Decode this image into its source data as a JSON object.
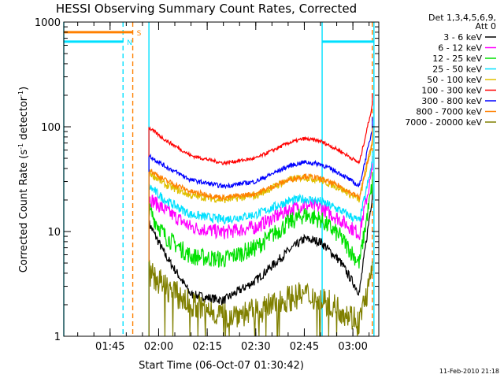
{
  "chart_data": {
    "type": "line",
    "title": "HESSI Observing Summary Count Rates, Corrected",
    "xlabel": "Start Time (06-Oct-07 01:30:42)",
    "ylabel_main": "Corrected Count Rate (s",
    "ylabel_sup1": "-1",
    "ylabel_mid": " detector",
    "ylabel_sup2": "-1",
    "ylabel_end": ")",
    "y_scale": "log",
    "ylim": [
      1,
      1000
    ],
    "xlim": [
      "01:30:42",
      "03:08:00"
    ],
    "x_ticks": [
      "01:45",
      "02:00",
      "02:15",
      "02:30",
      "02:45",
      "03:00"
    ],
    "y_ticks": [
      "1",
      "10",
      "100",
      "1000"
    ],
    "grid": false,
    "legend": {
      "position": "right",
      "header_1": "Det 1,3,4,5,6,9,",
      "header_2": "Att 0"
    },
    "timestamp": "11-Feb-2010 21:18",
    "flags": [
      {
        "label": "S",
        "color": "#ff8000",
        "x_start": "01:30:42",
        "x_end": "01:52:00",
        "y": 800
      },
      {
        "label": "N",
        "color": "#00e0ff",
        "x_start": "01:30:42",
        "x_end": "01:49:00",
        "y": 650
      },
      {
        "label": "",
        "color": "#00e0ff",
        "x_start": "02:50:30",
        "x_end": "03:06:30",
        "y": 650
      }
    ],
    "vlines": [
      {
        "x": "01:30:42",
        "color": "#00e0ff",
        "style": "solid"
      },
      {
        "x": "01:49:00",
        "color": "#00e0ff",
        "style": "dashed"
      },
      {
        "x": "01:52:00",
        "color": "#ff8000",
        "style": "dashed"
      },
      {
        "x": "01:57:00",
        "color": "#00e0ff",
        "style": "solid"
      },
      {
        "x": "02:50:30",
        "color": "#00e0ff",
        "style": "solid"
      },
      {
        "x": "03:06:00",
        "color": "#ff8000",
        "style": "dashed"
      },
      {
        "x": "03:06:30",
        "color": "#00e0ff",
        "style": "solid"
      }
    ],
    "data_start": "01:57:00",
    "data_end": "03:06:00",
    "series": [
      {
        "name": "3 - 6 keV",
        "color": "#000000",
        "x": [
          "01:57",
          "02:02",
          "02:10",
          "02:20",
          "02:30",
          "02:40",
          "02:45",
          "02:50",
          "02:56",
          "03:02",
          "03:06"
        ],
        "values": [
          12,
          6,
          2.5,
          2.2,
          3.4,
          6.5,
          8.5,
          8,
          5.2,
          2.6,
          22
        ]
      },
      {
        "name": "6 - 12 keV",
        "color": "#ff00ff",
        "x": [
          "01:57",
          "02:02",
          "02:10",
          "02:20",
          "02:30",
          "02:40",
          "02:45",
          "02:50",
          "02:56",
          "03:02",
          "03:06"
        ],
        "values": [
          21,
          16,
          11,
          9.8,
          11,
          16,
          18,
          17,
          13,
          9.5,
          38
        ]
      },
      {
        "name": "12 - 25 keV",
        "color": "#00e000",
        "x": [
          "01:57",
          "02:02",
          "02:10",
          "02:20",
          "02:30",
          "02:40",
          "02:45",
          "02:50",
          "02:56",
          "03:02",
          "03:06"
        ],
        "values": [
          16,
          9,
          5.8,
          5.4,
          7,
          12,
          14.5,
          13,
          9,
          5,
          28
        ]
      },
      {
        "name": "25 - 50 keV",
        "color": "#00e0ff",
        "x": [
          "01:57",
          "02:02",
          "02:10",
          "02:20",
          "02:30",
          "02:40",
          "02:45",
          "02:50",
          "02:56",
          "03:02",
          "03:06"
        ],
        "values": [
          27,
          20,
          14.5,
          13,
          14.5,
          19.5,
          20.5,
          19.5,
          16,
          12.5,
          45
        ]
      },
      {
        "name": "50 - 100 keV",
        "color": "#e0c000",
        "x": [
          "01:57",
          "02:02",
          "02:10",
          "02:20",
          "02:30",
          "02:40",
          "02:45",
          "02:50",
          "02:56",
          "03:02",
          "03:06"
        ],
        "values": [
          37,
          28,
          22,
          20,
          22,
          31,
          33,
          31,
          26,
          20,
          70
        ]
      },
      {
        "name": "100 - 300 keV",
        "color": "#ff0000",
        "x": [
          "01:57",
          "02:02",
          "02:10",
          "02:20",
          "02:30",
          "02:40",
          "02:45",
          "02:50",
          "02:56",
          "03:02",
          "03:06"
        ],
        "values": [
          98,
          75,
          53,
          45,
          50,
          70,
          77,
          73,
          59,
          45,
          160
        ]
      },
      {
        "name": "300 - 800 keV",
        "color": "#0000ff",
        "x": [
          "01:57",
          "02:02",
          "02:10",
          "02:20",
          "02:30",
          "02:40",
          "02:45",
          "02:50",
          "02:56",
          "03:02",
          "03:06"
        ],
        "values": [
          53,
          42,
          31,
          27,
          30,
          42,
          46,
          44,
          36,
          27,
          95
        ]
      },
      {
        "name": "800 - 7000 keV",
        "color": "#ff8000",
        "x": [
          "01:57",
          "02:02",
          "02:10",
          "02:20",
          "02:30",
          "02:40",
          "02:45",
          "02:50",
          "02:56",
          "03:02",
          "03:06"
        ],
        "values": [
          39,
          31,
          24,
          21,
          23,
          31,
          34,
          32,
          27,
          21,
          75
        ]
      },
      {
        "name": "7000 - 20000 keV",
        "color": "#808000",
        "x": [
          "01:57",
          "02:02",
          "02:10",
          "02:20",
          "02:30",
          "02:40",
          "02:45",
          "02:50",
          "02:56",
          "03:02",
          "03:06"
        ],
        "values": [
          4,
          3,
          2,
          1.6,
          1.7,
          2.3,
          2.5,
          2.3,
          1.8,
          1.4,
          4
        ]
      }
    ]
  }
}
